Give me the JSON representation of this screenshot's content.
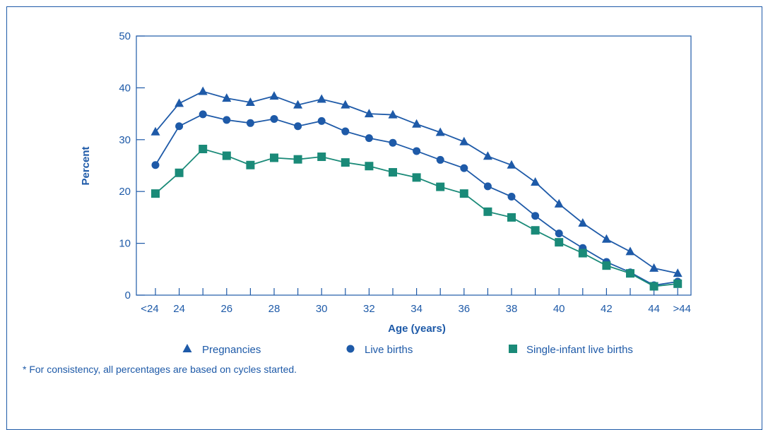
{
  "footnote": "* For consistency, all percentages are based on cycles started.",
  "colors": {
    "blue": "#1e5aa8",
    "teal": "#1a8a78"
  },
  "chart_data": {
    "type": "line",
    "xlabel": "Age (years)",
    "ylabel": "Percent",
    "ylim": [
      0,
      50
    ],
    "yticks": [
      0,
      10,
      20,
      30,
      40,
      50
    ],
    "grid": false,
    "legend_position": "bottom",
    "categories": [
      "<24",
      "24",
      "25",
      "26",
      "27",
      "28",
      "29",
      "30",
      "31",
      "32",
      "33",
      "34",
      "35",
      "36",
      "37",
      "38",
      "39",
      "40",
      "41",
      "42",
      "43",
      "44",
      ">44"
    ],
    "x_tick_labels": [
      {
        "category": "<24",
        "label": "<24"
      },
      {
        "category": "24",
        "label": "24"
      },
      {
        "category": "26",
        "label": "26"
      },
      {
        "category": "28",
        "label": "28"
      },
      {
        "category": "30",
        "label": "30"
      },
      {
        "category": "32",
        "label": "32"
      },
      {
        "category": "34",
        "label": "34"
      },
      {
        "category": "36",
        "label": "36"
      },
      {
        "category": "38",
        "label": "38"
      },
      {
        "category": "40",
        "label": "40"
      },
      {
        "category": "42",
        "label": "42"
      },
      {
        "category": "44",
        "label": "44"
      },
      {
        "category": ">44",
        "label": ">44"
      }
    ],
    "series": [
      {
        "name": "Pregnancies",
        "marker": "triangle",
        "color": "#1e5aa8",
        "values": [
          31.5,
          37.0,
          39.3,
          38.0,
          37.2,
          38.4,
          36.7,
          37.8,
          36.7,
          35.0,
          34.8,
          33.0,
          31.4,
          29.6,
          26.8,
          25.1,
          21.8,
          17.6,
          13.9,
          10.8,
          8.4,
          5.2,
          4.2
        ]
      },
      {
        "name": "Live births",
        "marker": "circle",
        "color": "#1e5aa8",
        "values": [
          25.1,
          32.6,
          34.9,
          33.8,
          33.2,
          34.0,
          32.6,
          33.6,
          31.6,
          30.3,
          29.4,
          27.8,
          26.1,
          24.5,
          21.0,
          19.0,
          15.3,
          11.9,
          9.1,
          6.4,
          4.4,
          1.9,
          2.6
        ]
      },
      {
        "name": "Single-infant live births",
        "marker": "square",
        "color": "#1a8a78",
        "values": [
          19.6,
          23.6,
          28.2,
          26.9,
          25.1,
          26.5,
          26.2,
          26.7,
          25.6,
          24.9,
          23.7,
          22.7,
          20.9,
          19.6,
          16.1,
          15.0,
          12.5,
          10.2,
          8.1,
          5.7,
          4.2,
          1.7,
          2.2
        ]
      }
    ]
  }
}
